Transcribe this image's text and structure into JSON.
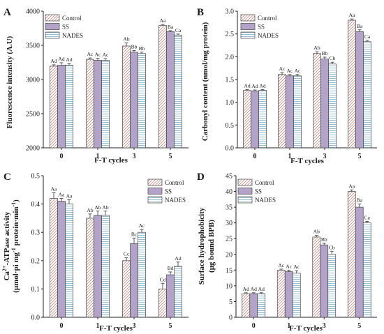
{
  "patterns": {
    "control": {
      "stroke": "#b07a72",
      "bg": "#ffffff"
    },
    "ss": {
      "fill": "#b4a3c9"
    },
    "nades": {
      "stroke": "#7aaecb",
      "bg": "#ffffff"
    }
  },
  "chart_data": [
    {
      "type": "bar",
      "panel": "A",
      "xlabel": "F-T cycles",
      "ylabel": "Fluorescence intensity (A.U)",
      "categories": [
        "0",
        "1",
        "3",
        "5"
      ],
      "ylim": [
        2000,
        4000
      ],
      "yticks": [
        "2000",
        "2500",
        "3000",
        "3500",
        "4000"
      ],
      "ytick_values": [
        2000,
        2500,
        3000,
        3500,
        4000
      ],
      "legend": [
        "Control",
        "SS",
        "NADES"
      ],
      "legend_position": "top-left",
      "series": [
        {
          "name": "Control",
          "values": [
            3195,
            3295,
            3490,
            3790
          ],
          "errors": [
            20,
            20,
            45,
            15
          ],
          "labels": [
            "Ad",
            "Ac",
            "Ab",
            "Aa"
          ]
        },
        {
          "name": "SS",
          "values": [
            3210,
            3280,
            3400,
            3700
          ],
          "errors": [
            35,
            30,
            25,
            15
          ],
          "labels": [
            "Ad",
            "Ac",
            "Bb",
            "Ba"
          ]
        },
        {
          "name": "NADES",
          "values": [
            3210,
            3280,
            3380,
            3650
          ],
          "errors": [
            25,
            25,
            20,
            15
          ],
          "labels": [
            "Ad",
            "Ac",
            "Bb",
            "Ca"
          ]
        }
      ]
    },
    {
      "type": "bar",
      "panel": "B",
      "xlabel": "F-T cycles",
      "ylabel": "Carbonyl content (nmol/mg protein)",
      "categories": [
        "0",
        "1",
        "3",
        "5"
      ],
      "ylim": [
        0,
        3.0
      ],
      "yticks": [
        "0.0",
        "0.5",
        "1.0",
        "1.5",
        "2.0",
        "2.5",
        "3.0"
      ],
      "ytick_values": [
        0,
        0.5,
        1.0,
        1.5,
        2.0,
        2.5,
        3.0
      ],
      "legend": [
        "Control",
        "SS",
        "NADES"
      ],
      "legend_position": "top-left",
      "series": [
        {
          "name": "Control",
          "values": [
            1.26,
            1.61,
            2.07,
            2.8
          ],
          "errors": [
            0.02,
            0.04,
            0.04,
            0.03
          ],
          "labels": [
            "Ad",
            "Ac",
            "Ab",
            "Aa"
          ]
        },
        {
          "name": "SS",
          "values": [
            1.25,
            1.58,
            1.95,
            2.55
          ],
          "errors": [
            0.02,
            0.03,
            0.04,
            0.04
          ],
          "labels": [
            "Ad",
            "Ac",
            "Bb",
            "Ba"
          ]
        },
        {
          "name": "NADES",
          "values": [
            1.26,
            1.58,
            1.84,
            2.33
          ],
          "errors": [
            0.02,
            0.03,
            0.04,
            0.03
          ],
          "labels": [
            "Ad",
            "Ac",
            "Cb",
            "Ca"
          ]
        }
      ]
    },
    {
      "type": "bar",
      "panel": "C",
      "xlabel": "F-T cycles",
      "ylabel_main": "Ca",
      "ylabel_sup1": "2+",
      "ylabel_mid1": "-ATPase activity",
      "ylabel_line2a": "(μmol·pi mg",
      "ylabel_sup2": "-1",
      "ylabel_line2b": " protein·min",
      "ylabel_sup3": "-1",
      "ylabel_line2c": ")",
      "categories": [
        "0",
        "1",
        "3",
        "5"
      ],
      "ylim": [
        0,
        0.5
      ],
      "yticks": [
        "0.0",
        "0.1",
        "0.2",
        "0.3",
        "0.4",
        "0.5"
      ],
      "ytick_values": [
        0,
        0.1,
        0.2,
        0.3,
        0.4,
        0.5
      ],
      "legend": [
        "Control",
        "SS",
        "NADES"
      ],
      "legend_position": "top-right",
      "series": [
        {
          "name": "Control",
          "values": [
            0.42,
            0.35,
            0.2,
            0.1
          ],
          "errors": [
            0.02,
            0.015,
            0.01,
            0.02
          ],
          "labels": [
            "Aa",
            "Ab",
            "Cc",
            "Cd"
          ]
        },
        {
          "name": "SS",
          "values": [
            0.41,
            0.36,
            0.26,
            0.15
          ],
          "errors": [
            0.01,
            0.015,
            0.02,
            0.01
          ],
          "labels": [
            "Aa",
            "Ab",
            "Bc",
            "Bd"
          ]
        },
        {
          "name": "NADES",
          "values": [
            0.4,
            0.36,
            0.3,
            0.18
          ],
          "errors": [
            0.015,
            0.015,
            0.01,
            0.015
          ],
          "labels": [
            "Aa",
            "Ab",
            "Ac",
            "Ad"
          ]
        }
      ]
    },
    {
      "type": "bar",
      "panel": "D",
      "xlabel": "F-T cycles",
      "ylabel_line1": "Surface hydrophobicity",
      "ylabel_line2": "(μg bound BPB)",
      "categories": [
        "0",
        "1",
        "3",
        "5"
      ],
      "ylim": [
        0,
        45
      ],
      "yticks": [
        "0",
        "5",
        "10",
        "15",
        "20",
        "25",
        "30",
        "35",
        "40",
        "45"
      ],
      "ytick_values": [
        0,
        5,
        10,
        15,
        20,
        25,
        30,
        35,
        40,
        45
      ],
      "legend": [
        "Control",
        "SS",
        "NADES"
      ],
      "legend_position": "top-left",
      "series": [
        {
          "name": "Control",
          "values": [
            7.5,
            15.0,
            25.5,
            40.0
          ],
          "errors": [
            0.3,
            0.3,
            0.5,
            0.5
          ],
          "labels": [
            "Ad",
            "Ac",
            "Ab",
            "Aa"
          ]
        },
        {
          "name": "SS",
          "values": [
            7.5,
            14.5,
            23.0,
            35.0
          ],
          "errors": [
            0.3,
            0.5,
            0.5,
            1.0
          ],
          "labels": [
            "Ad",
            "Ac",
            "Bb",
            "Ba"
          ]
        },
        {
          "name": "NADES",
          "values": [
            7.5,
            14.0,
            20.0,
            30.0
          ],
          "errors": [
            0.3,
            0.8,
            1.0,
            0.5
          ],
          "labels": [
            "Ad",
            "Ac",
            "Cb",
            "Ca"
          ]
        }
      ]
    }
  ]
}
